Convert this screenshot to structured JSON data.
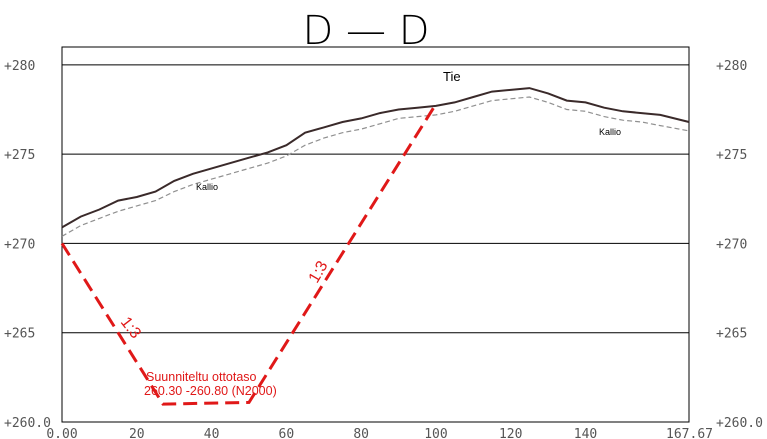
{
  "section": {
    "title": "D — D",
    "x_ticks": [
      "0.00",
      "20",
      "40",
      "60",
      "80",
      "100",
      "120",
      "140",
      "167.67"
    ],
    "y_ticks_left": [
      "+280",
      "+275",
      "+270",
      "+265",
      "+260.0"
    ],
    "y_ticks_right": [
      "+280",
      "+275",
      "+270",
      "+265",
      "+260.0"
    ],
    "ranges": {
      "x": [
        0,
        167.67
      ],
      "y": [
        260,
        281
      ]
    },
    "ground_profile": [
      [
        0,
        270.9
      ],
      [
        5,
        271.5
      ],
      [
        10,
        271.9
      ],
      [
        15,
        272.4
      ],
      [
        20,
        272.6
      ],
      [
        25,
        272.9
      ],
      [
        30,
        273.5
      ],
      [
        35,
        273.9
      ],
      [
        40,
        274.2
      ],
      [
        45,
        274.5
      ],
      [
        50,
        274.8
      ],
      [
        55,
        275.1
      ],
      [
        60,
        275.5
      ],
      [
        65,
        276.2
      ],
      [
        70,
        276.5
      ],
      [
        75,
        276.8
      ],
      [
        80,
        277.0
      ],
      [
        85,
        277.3
      ],
      [
        90,
        277.5
      ],
      [
        95,
        277.6
      ],
      [
        100,
        277.7
      ],
      [
        105,
        277.9
      ],
      [
        110,
        278.2
      ],
      [
        115,
        278.5
      ],
      [
        120,
        278.6
      ],
      [
        125,
        278.7
      ],
      [
        130,
        278.4
      ],
      [
        135,
        278.0
      ],
      [
        140,
        277.9
      ],
      [
        145,
        277.6
      ],
      [
        150,
        277.4
      ],
      [
        155,
        277.3
      ],
      [
        160,
        277.2
      ],
      [
        167.67,
        276.8
      ]
    ],
    "rock_profile": [
      [
        0,
        270.4
      ],
      [
        5,
        271.0
      ],
      [
        10,
        271.4
      ],
      [
        15,
        271.8
      ],
      [
        20,
        272.1
      ],
      [
        25,
        272.4
      ],
      [
        30,
        272.9
      ],
      [
        35,
        273.3
      ],
      [
        40,
        273.6
      ],
      [
        45,
        273.9
      ],
      [
        50,
        274.2
      ],
      [
        55,
        274.5
      ],
      [
        60,
        274.9
      ],
      [
        65,
        275.5
      ],
      [
        70,
        275.9
      ],
      [
        75,
        276.2
      ],
      [
        80,
        276.4
      ],
      [
        85,
        276.7
      ],
      [
        90,
        277.0
      ],
      [
        95,
        277.1
      ],
      [
        100,
        277.2
      ],
      [
        105,
        277.4
      ],
      [
        110,
        277.7
      ],
      [
        115,
        278.0
      ],
      [
        120,
        278.1
      ],
      [
        125,
        278.2
      ],
      [
        130,
        277.9
      ],
      [
        135,
        277.5
      ],
      [
        140,
        277.4
      ],
      [
        145,
        277.1
      ],
      [
        150,
        276.9
      ],
      [
        155,
        276.8
      ],
      [
        160,
        276.6
      ],
      [
        167.67,
        276.3
      ]
    ],
    "excavation_profile": [
      [
        0,
        270.0
      ],
      [
        27,
        261.0
      ],
      [
        50,
        261.1
      ],
      [
        100,
        277.8
      ]
    ],
    "labels": {
      "road": "Tie",
      "rock_left": "Kallio",
      "rock_right": "Kallio",
      "slope_left": "1:3",
      "slope_right": "1:3",
      "planned_level_line1": "Suunniteltu ottotaso",
      "planned_level_line2": "260.30 -260.80 (N2000)"
    },
    "colors": {
      "ground": "#3a2a2a",
      "rock": "#909090",
      "excavation": "#e01818",
      "grid": "#000000",
      "text": "#555555"
    }
  }
}
